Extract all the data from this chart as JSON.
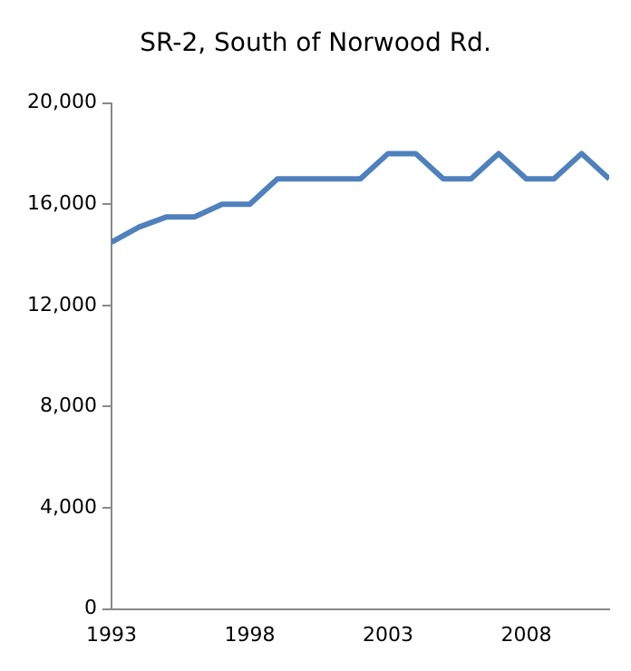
{
  "chart_data": {
    "type": "line",
    "title": "SR-2, South of Norwood Rd.",
    "x": [
      1993,
      1994,
      1995,
      1996,
      1997,
      1998,
      1999,
      2000,
      2001,
      2002,
      2003,
      2004,
      2005,
      2006,
      2007,
      2008,
      2009,
      2010,
      2011
    ],
    "series": [
      {
        "color": "#4f81bd",
        "values": [
          14500,
          15100,
          15500,
          15500,
          16000,
          16000,
          17000,
          17000,
          17000,
          17000,
          18000,
          18000,
          17000,
          17000,
          18000,
          17000,
          17000,
          18000,
          17000
        ]
      }
    ],
    "xlim": [
      1993,
      2011
    ],
    "xticks": [
      1993,
      1998,
      2003,
      2008
    ],
    "ylim": [
      0,
      20000
    ],
    "yticks": [
      0,
      {
        "value": 4000,
        "label": "4,000"
      },
      {
        "value": 8000,
        "label": "8,000"
      },
      {
        "value": 12000,
        "label": "12,000"
      },
      {
        "value": 16000,
        "label": "16,000"
      },
      {
        "value": 20000,
        "label": "20,000"
      }
    ],
    "grid": false,
    "legend": false,
    "marker": "none",
    "line_style": "solid"
  }
}
